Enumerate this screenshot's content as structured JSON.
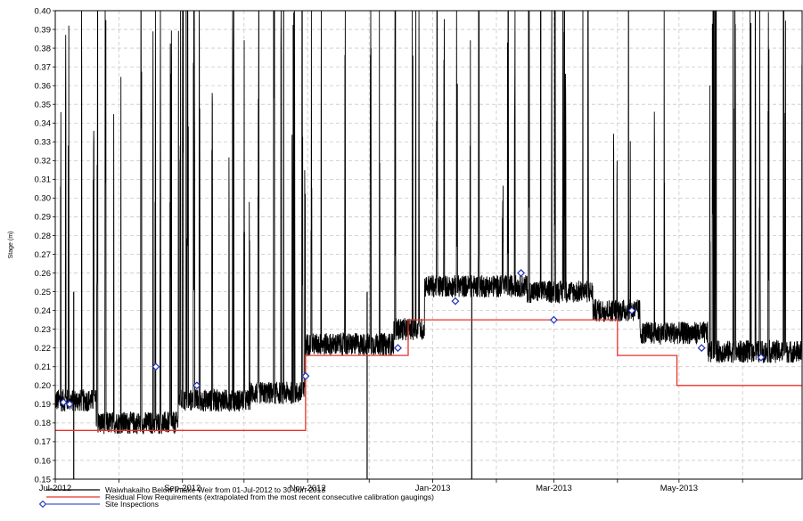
{
  "chart_data": {
    "type": "line",
    "ylabel": "Stage (m)",
    "ylim": [
      0.15,
      0.4
    ],
    "xlim": [
      "2012-07-01",
      "2013-06-30"
    ],
    "y_ticks": [
      "0.15",
      "0.16",
      "0.17",
      "0.18",
      "0.19",
      "0.20",
      "0.21",
      "0.22",
      "0.23",
      "0.24",
      "0.25",
      "0.26",
      "0.27",
      "0.28",
      "0.29",
      "0.30",
      "0.31",
      "0.32",
      "0.33",
      "0.34",
      "0.35",
      "0.36",
      "0.37",
      "0.38",
      "0.39",
      "0.40"
    ],
    "x_ticks": [
      {
        "date": "2012-07-01",
        "label": "Jul-2012"
      },
      {
        "date": "2012-09-01",
        "label": "Sep-2012"
      },
      {
        "date": "2012-11-01",
        "label": "Nov-2012"
      },
      {
        "date": "2013-01-01",
        "label": "Jan-2013"
      },
      {
        "date": "2013-03-01",
        "label": "Mar-2013"
      },
      {
        "date": "2013-05-01",
        "label": "May-2013"
      }
    ],
    "grid": true,
    "legend_position": "bottom-left",
    "series": [
      {
        "name": "Waiwhakaiho Below Intake Weir from 01-Jul-2012 to 30-Jun-2013",
        "color": "#000000",
        "style": "line"
      },
      {
        "name": "Residual Flow Requirements (extrapolated from the most recent consecutive calibration gaugings)",
        "color": "#e8332a",
        "style": "step",
        "points": [
          {
            "date": "2012-07-01",
            "value": 0.176
          },
          {
            "date": "2012-10-31",
            "value": 0.216
          },
          {
            "date": "2012-12-20",
            "value": 0.235
          },
          {
            "date": "2013-04-01",
            "value": 0.216
          },
          {
            "date": "2013-04-30",
            "value": 0.2
          },
          {
            "date": "2013-06-30",
            "value": 0.2
          }
        ]
      },
      {
        "name": "Site Inspections",
        "color": "#1e2fb4",
        "style": "marker",
        "points": [
          {
            "date": "2012-07-05",
            "value": 0.191
          },
          {
            "date": "2012-07-08",
            "value": 0.19
          },
          {
            "date": "2012-08-19",
            "value": 0.21
          },
          {
            "date": "2012-09-08",
            "value": 0.2
          },
          {
            "date": "2012-10-31",
            "value": 0.205
          },
          {
            "date": "2012-12-15",
            "value": 0.22
          },
          {
            "date": "2013-01-12",
            "value": 0.245
          },
          {
            "date": "2013-02-13",
            "value": 0.26
          },
          {
            "date": "2013-03-01",
            "value": 0.235
          },
          {
            "date": "2013-04-08",
            "value": 0.24
          },
          {
            "date": "2013-05-12",
            "value": 0.22
          },
          {
            "date": "2013-06-10",
            "value": 0.215
          }
        ]
      }
    ]
  }
}
